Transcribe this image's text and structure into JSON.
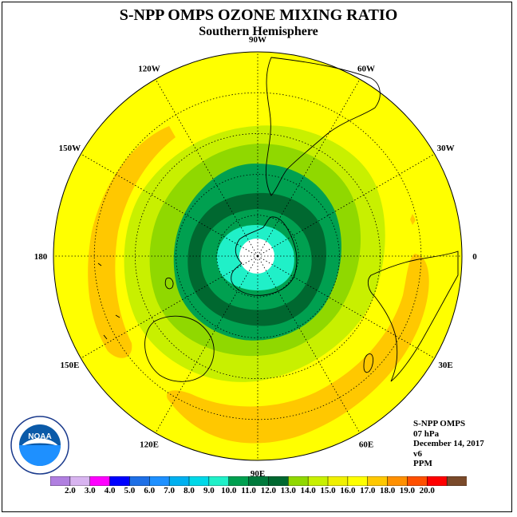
{
  "title": "S-NPP OMPS OZONE MIXING RATIO",
  "subtitle": "Southern Hemisphere",
  "logo_text": "NOAA",
  "longitude_labels": [
    {
      "text": "90W",
      "lon_deg": -90
    },
    {
      "text": "60W",
      "lon_deg": -60
    },
    {
      "text": "30W",
      "lon_deg": -30
    },
    {
      "text": "0",
      "lon_deg": 0
    },
    {
      "text": "30E",
      "lon_deg": 30
    },
    {
      "text": "60E",
      "lon_deg": 60
    },
    {
      "text": "90E",
      "lon_deg": 90
    },
    {
      "text": "120E",
      "lon_deg": 120
    },
    {
      "text": "150E",
      "lon_deg": 150
    },
    {
      "text": "180",
      "lon_deg": 180
    },
    {
      "text": "150W",
      "lon_deg": -150
    },
    {
      "text": "120W",
      "lon_deg": -120
    }
  ],
  "info": {
    "instrument": "S-NPP OMPS",
    "level": "07 hPa",
    "date": "December 14, 2017",
    "version": "v6",
    "units": "PPM"
  },
  "colorbar": {
    "labels": [
      "2.0",
      "3.0",
      "4.0",
      "5.0",
      "6.0",
      "7.0",
      "8.0",
      "9.0",
      "10.0",
      "11.0",
      "12.0",
      "13.0",
      "14.0",
      "15.0",
      "16.0",
      "17.0",
      "18.0",
      "19.0",
      "20.0"
    ],
    "colors": [
      "#b07fe0",
      "#d8b4f0",
      "#ff00ff",
      "#0000ff",
      "#1e6fe6",
      "#1e90ff",
      "#00b0f0",
      "#00d8e8",
      "#20f0c8",
      "#00a050",
      "#007a3c",
      "#006830",
      "#90d800",
      "#c8f000",
      "#f0f000",
      "#ffff00",
      "#ffc800",
      "#ff9000",
      "#ff5000",
      "#ff0000",
      "#7a4a2a"
    ]
  },
  "chart_data": {
    "type": "heatmap",
    "variable": "Ozone mixing ratio",
    "units": "PPM",
    "pressure_level": "07 hPa",
    "date": "December 14, 2017",
    "hemisphere": "Southern",
    "contour_levels": [
      2.0,
      3.0,
      4.0,
      5.0,
      6.0,
      7.0,
      8.0,
      9.0,
      10.0,
      11.0,
      12.0,
      13.0,
      14.0,
      15.0,
      16.0,
      17.0,
      18.0,
      19.0,
      20.0
    ],
    "regions": [
      {
        "range": "15.0-16.0",
        "description": "outer hemisphere background"
      },
      {
        "range": "16.0-17.0",
        "description": "arc 150W-180 and crescent 60E-150E"
      },
      {
        "range": "14.0-15.0",
        "description": "ring around vortex"
      },
      {
        "range": "13.0-14.0",
        "description": "inner ring"
      },
      {
        "range": "12.0-13.0",
        "description": "ring"
      },
      {
        "range": "11.0-12.0",
        "description": "vortex edge"
      },
      {
        "range": "10.0-11.0",
        "description": "inner vortex"
      },
      {
        "range": "9.0-10.0",
        "description": "polar core"
      }
    ]
  }
}
